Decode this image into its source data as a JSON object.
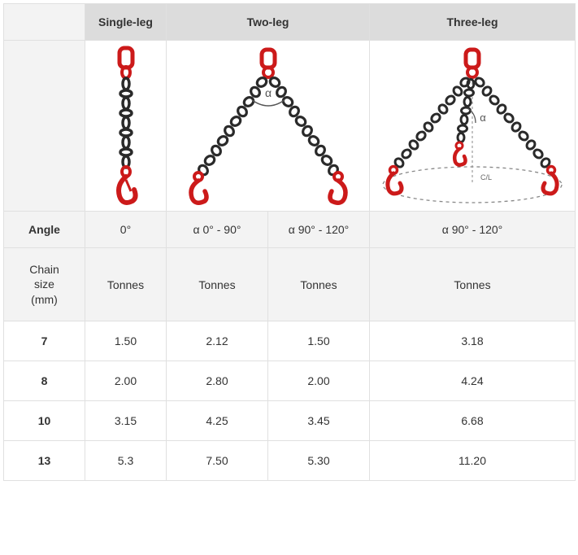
{
  "colors": {
    "red": "#cc1a1a",
    "chain": "#2a2a2a",
    "border": "#e0e0e0",
    "header_bg": "#dcdcdc",
    "label_bg": "#f3f3f3",
    "angle_text": "#555"
  },
  "headers": {
    "single": "Single-leg",
    "two": "Two-leg",
    "three": "Three-leg"
  },
  "angle_label": "Angle",
  "angles": {
    "single": "0°",
    "two_a": "α 0° - 90°",
    "two_b": "α 90° - 120°",
    "three": "α 90° - 120°"
  },
  "units": {
    "label_line1": "Chain",
    "label_line2": "size",
    "label_line3": "(mm)",
    "single": "Tonnes",
    "two_a": "Tonnes",
    "two_b": "Tonnes",
    "three": "Tonnes"
  },
  "rows": [
    {
      "size": "7",
      "single": "1.50",
      "two_a": "2.12",
      "two_b": "1.50",
      "three": "3.18"
    },
    {
      "size": "8",
      "single": "2.00",
      "two_a": "2.80",
      "two_b": "2.00",
      "three": "4.24"
    },
    {
      "size": "10",
      "single": "3.15",
      "two_a": "4.25",
      "two_b": "3.45",
      "three": "6.68"
    },
    {
      "size": "13",
      "single": "5.3",
      "two_a": "7.50",
      "two_b": "5.30",
      "three": "11.20"
    }
  ],
  "alpha_symbol": "α",
  "cl_label": "C/L"
}
